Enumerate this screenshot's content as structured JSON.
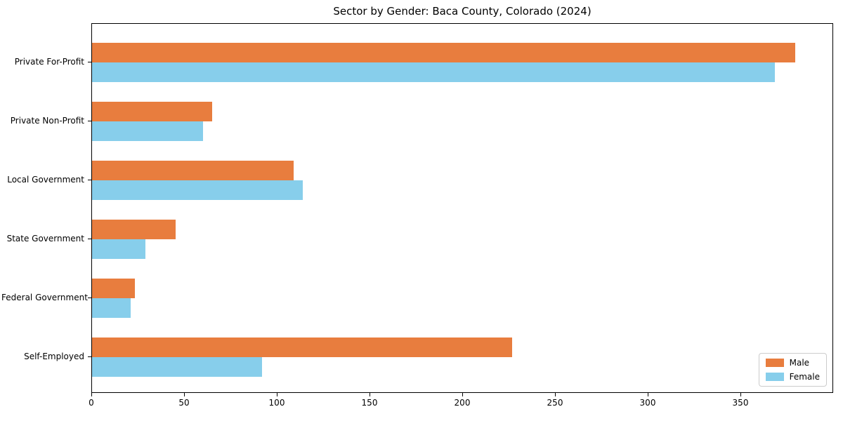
{
  "chart_data": {
    "type": "bar",
    "orientation": "horizontal",
    "title": "Sector by Gender: Baca County, Colorado (2024)",
    "categories": [
      "Private For-Profit",
      "Private Non-Profit",
      "Local Government",
      "State Government",
      "Federal Government",
      "Self-Employed"
    ],
    "series": [
      {
        "name": "Male",
        "color": "#e87d3e",
        "values": [
          380,
          65,
          109,
          45,
          23,
          227
        ]
      },
      {
        "name": "Female",
        "color": "#87ceeb",
        "values": [
          369,
          60,
          114,
          29,
          21,
          92
        ]
      }
    ],
    "xlabel": "",
    "ylabel": "",
    "xlim": [
      0,
      400
    ],
    "xticks": [
      0,
      50,
      100,
      150,
      200,
      250,
      300,
      350
    ],
    "grid": false,
    "legend_position": "lower right",
    "axis_color": "#000000",
    "background_color": "#ffffff"
  }
}
